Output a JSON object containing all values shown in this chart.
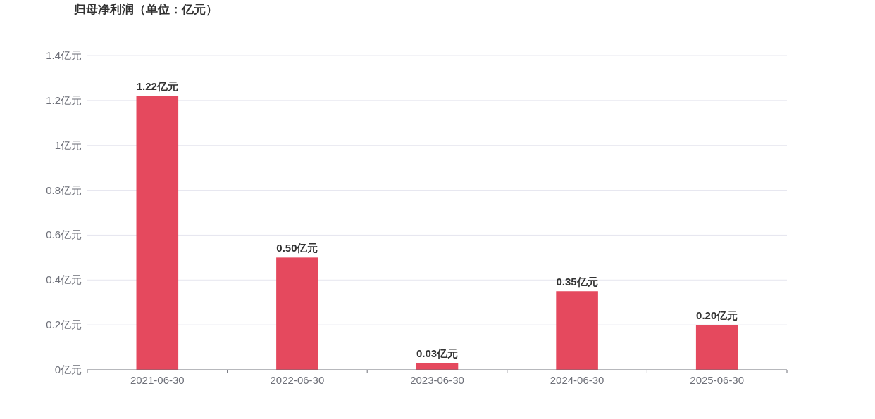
{
  "chart_data": {
    "type": "bar",
    "title": "归母净利润（单位：亿元）",
    "categories": [
      "2021-06-30",
      "2022-06-30",
      "2023-06-30",
      "2024-06-30",
      "2025-06-30"
    ],
    "values": [
      1.22,
      0.5,
      0.03,
      0.35,
      0.2
    ],
    "value_labels": [
      "1.22亿元",
      "0.50亿元",
      "0.03亿元",
      "0.35亿元",
      "0.20亿元"
    ],
    "color": "#e5495e",
    "ylim": [
      0,
      1.4
    ],
    "yticks": [
      {
        "value": 0,
        "label": "0亿元"
      },
      {
        "value": 0.2,
        "label": "0.2亿元"
      },
      {
        "value": 0.4,
        "label": "0.4亿元"
      },
      {
        "value": 0.6,
        "label": "0.6亿元"
      },
      {
        "value": 0.8,
        "label": "0.8亿元"
      },
      {
        "value": 1,
        "label": "1亿元"
      },
      {
        "value": 1.2,
        "label": "1.2亿元"
      },
      {
        "value": 1.4,
        "label": "1.4亿元"
      }
    ],
    "grid": "y"
  }
}
